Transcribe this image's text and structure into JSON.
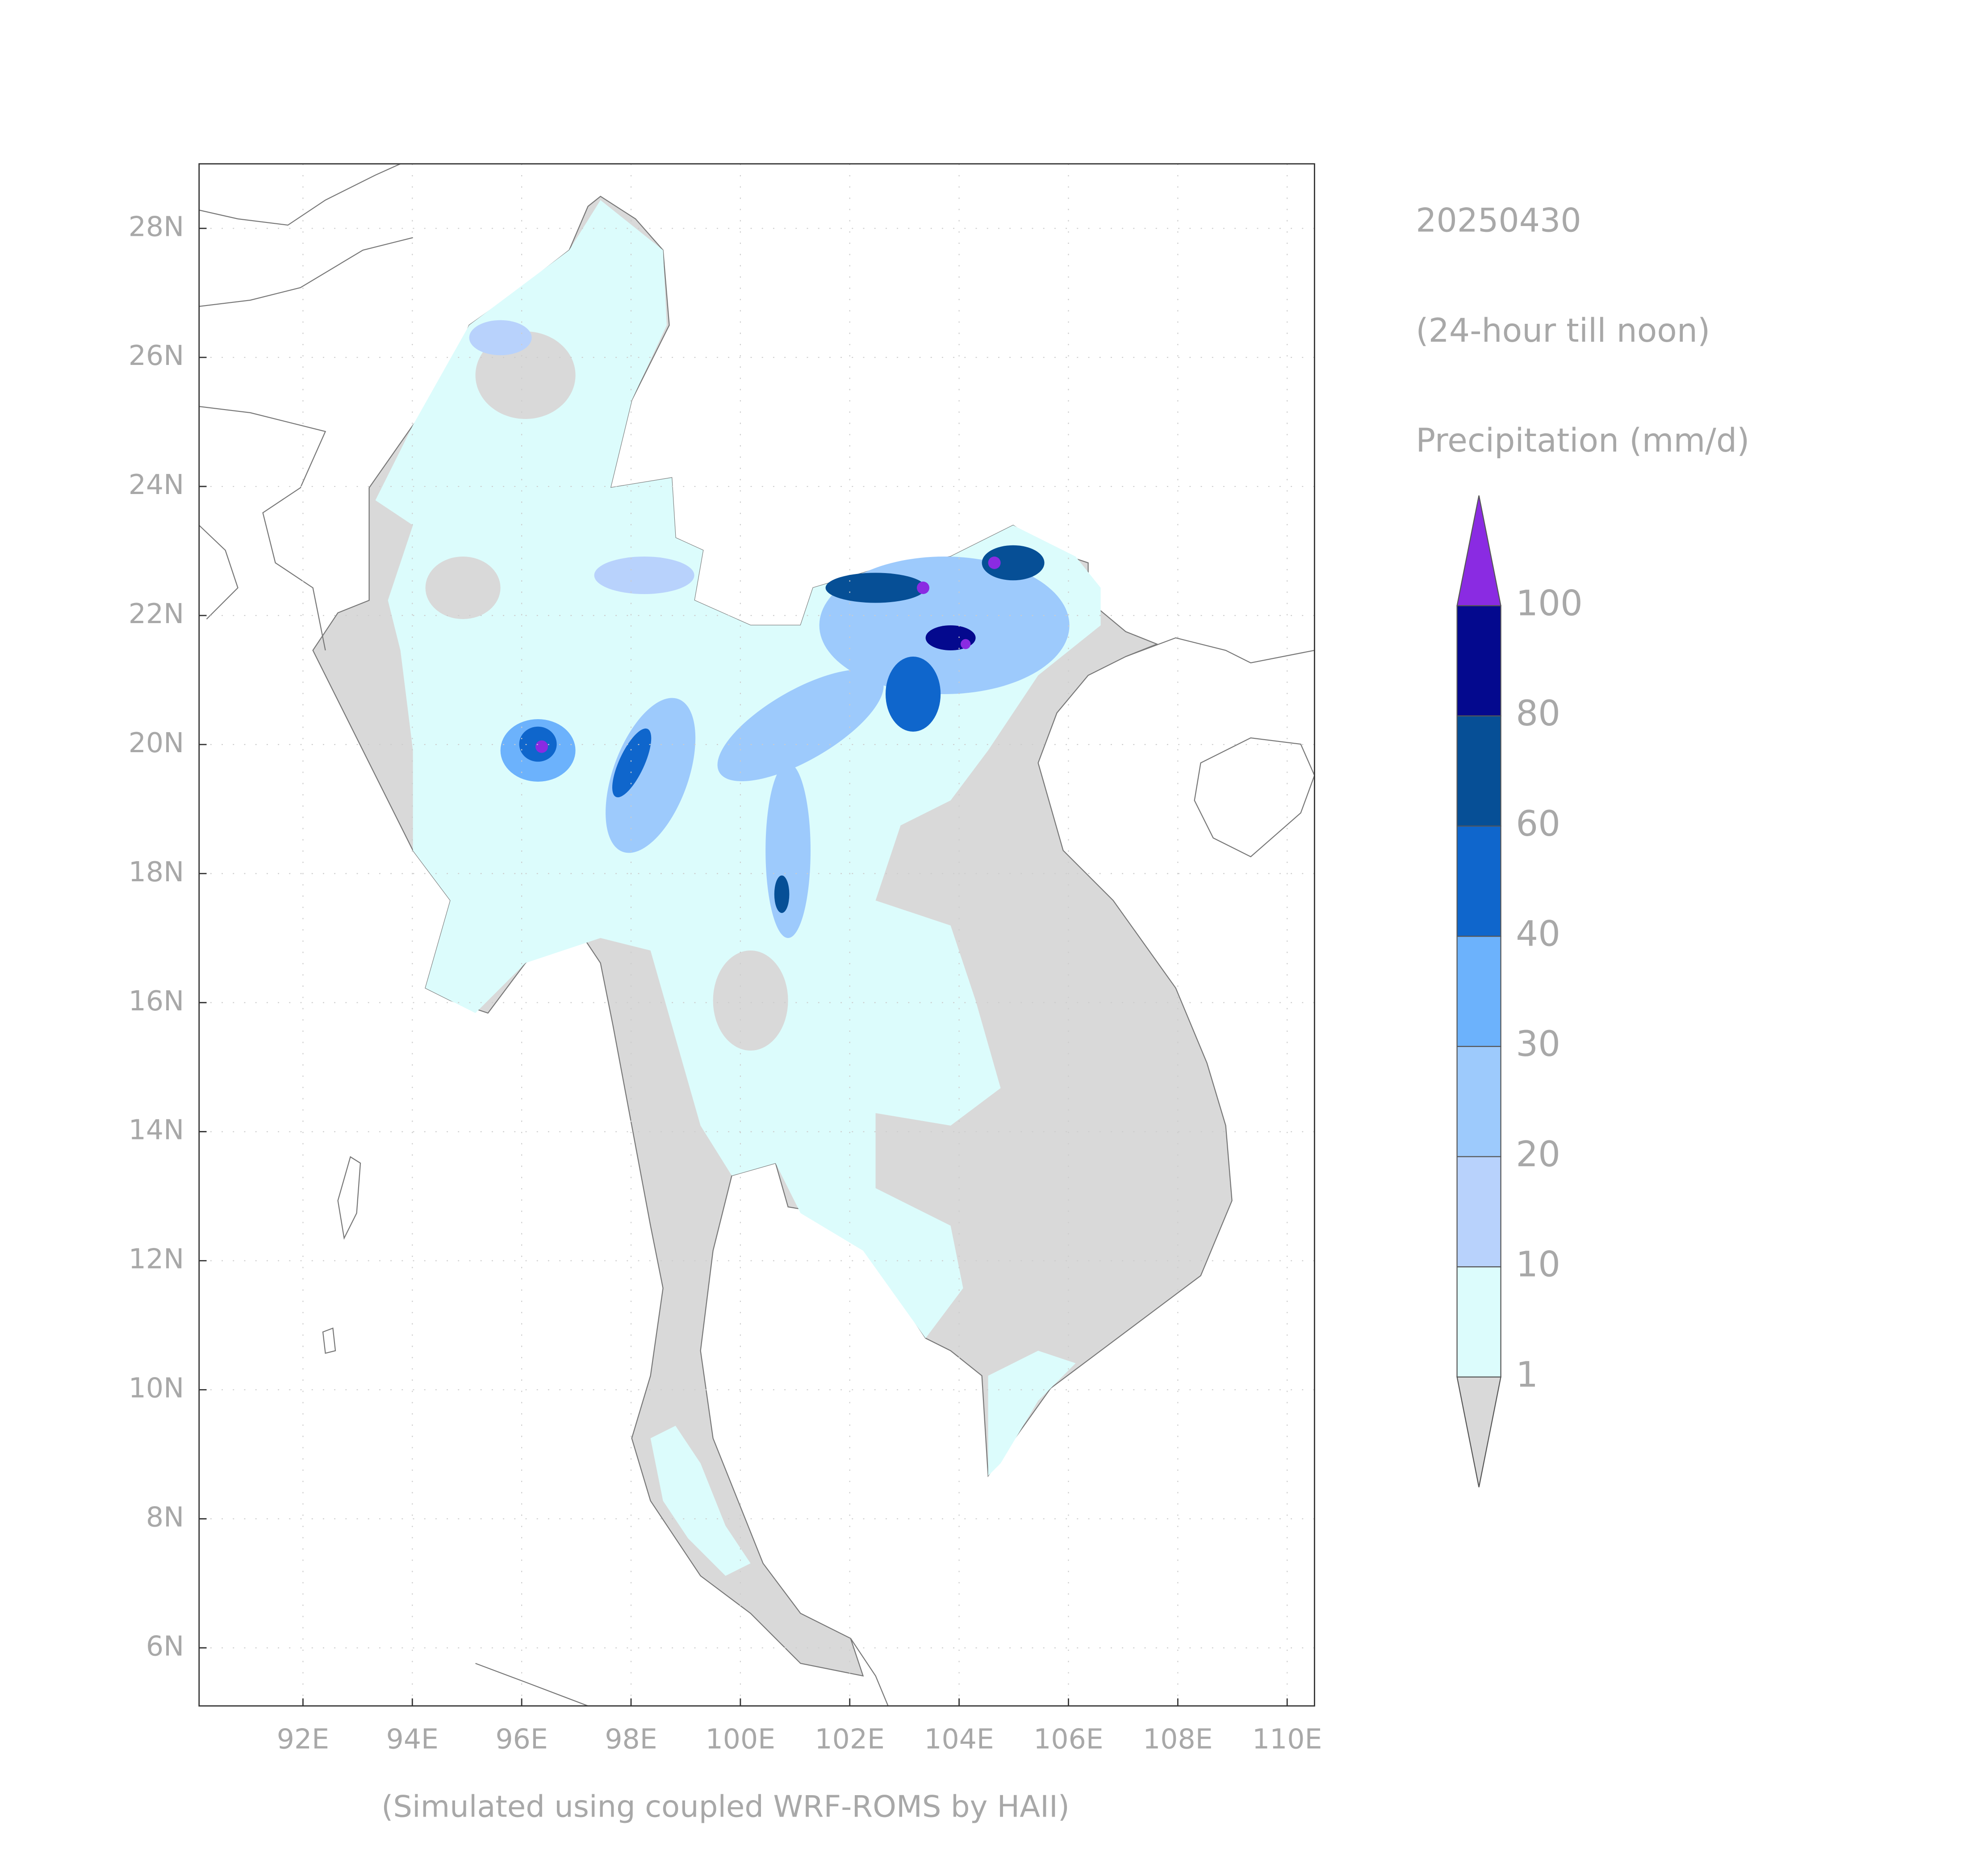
{
  "title": "20250430",
  "subtitle": "(24-hour till noon)",
  "variable": "Precipitation (mm/d)",
  "footer": "(Simulated using coupled WRF-ROMS by HAII)",
  "map": {
    "xlim": [
      90.1,
      110.5
    ],
    "ylim": [
      5.1,
      29.0
    ],
    "xticks": [
      {
        "value": 92,
        "label": "92E"
      },
      {
        "value": 94,
        "label": "94E"
      },
      {
        "value": 96,
        "label": "96E"
      },
      {
        "value": 98,
        "label": "98E"
      },
      {
        "value": 100,
        "label": "100E"
      },
      {
        "value": 102,
        "label": "102E"
      },
      {
        "value": 104,
        "label": "104E"
      },
      {
        "value": 106,
        "label": "106E"
      },
      {
        "value": 108,
        "label": "108E"
      },
      {
        "value": 110,
        "label": "110E"
      }
    ],
    "yticks": [
      {
        "value": 6,
        "label": "6N"
      },
      {
        "value": 8,
        "label": "8N"
      },
      {
        "value": 10,
        "label": "10N"
      },
      {
        "value": 12,
        "label": "12N"
      },
      {
        "value": 14,
        "label": "14N"
      },
      {
        "value": 16,
        "label": "16N"
      },
      {
        "value": 18,
        "label": "18N"
      },
      {
        "value": 20,
        "label": "20N"
      },
      {
        "value": 22,
        "label": "22N"
      },
      {
        "value": 24,
        "label": "24N"
      },
      {
        "value": 26,
        "label": "26N"
      },
      {
        "value": 28,
        "label": "28N"
      }
    ],
    "grid": true
  },
  "colorbar": {
    "levels": [
      1,
      10,
      20,
      30,
      40,
      60,
      80,
      100
    ],
    "colors": [
      "#d9d9d9",
      "#dcfcfc",
      "#b8d2fc",
      "#9dcafc",
      "#6cb2fc",
      "#0f66cc",
      "#064f96",
      "#04098e",
      "#8a2be2"
    ]
  }
}
